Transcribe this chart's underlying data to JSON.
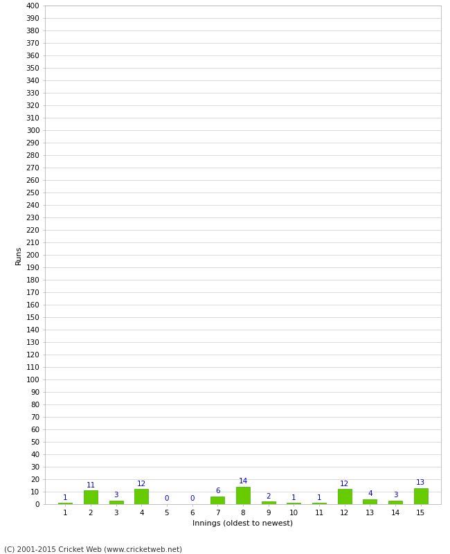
{
  "xlabel": "Innings (oldest to newest)",
  "ylabel": "Runs",
  "categories": [
    1,
    2,
    3,
    4,
    5,
    6,
    7,
    8,
    9,
    10,
    11,
    12,
    13,
    14,
    15
  ],
  "values": [
    1,
    11,
    3,
    12,
    0,
    0,
    6,
    14,
    2,
    1,
    1,
    12,
    4,
    3,
    13
  ],
  "bar_color": "#66cc00",
  "bar_edge_color": "#44aa00",
  "label_color": "#0000cc",
  "grid_color": "#cccccc",
  "background_color": "#ffffff",
  "ylim": [
    0,
    400
  ],
  "ytick_step": 10,
  "label_fontsize": 7.5,
  "axis_tick_fontsize": 7.5,
  "axis_label_fontsize": 8,
  "footer_text": "(C) 2001-2015 Cricket Web (www.cricketweb.net)",
  "footer_fontsize": 7.5
}
